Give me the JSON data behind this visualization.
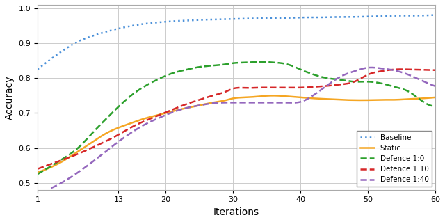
{
  "title": "",
  "xlabel": "Iterations",
  "ylabel": "Accuracy",
  "xlim": [
    1,
    60
  ],
  "ylim": [
    0.48,
    1.01
  ],
  "xticks": [
    1,
    13,
    20,
    30,
    40,
    50,
    60
  ],
  "yticks": [
    0.5,
    0.6,
    0.7,
    0.8,
    0.9,
    1.0
  ],
  "series": [
    {
      "label": "Baseline",
      "color": "#4a90d9",
      "linestyle": "dotted",
      "linewidth": 1.8,
      "x": [
        1,
        3,
        5,
        7,
        9,
        11,
        13,
        15,
        17,
        19,
        21,
        23,
        25,
        27,
        29,
        31,
        33,
        35,
        37,
        39,
        41,
        43,
        45,
        47,
        49,
        51,
        53,
        55,
        57,
        59,
        60
      ],
      "y": [
        0.825,
        0.855,
        0.882,
        0.905,
        0.92,
        0.932,
        0.942,
        0.95,
        0.956,
        0.96,
        0.963,
        0.965,
        0.967,
        0.968,
        0.969,
        0.97,
        0.971,
        0.972,
        0.972,
        0.973,
        0.974,
        0.974,
        0.975,
        0.975,
        0.976,
        0.977,
        0.978,
        0.979,
        0.979,
        0.98,
        0.981
      ]
    },
    {
      "label": "Static",
      "color": "#f5a623",
      "linestyle": "solid",
      "linewidth": 1.8,
      "x": [
        1,
        3,
        5,
        7,
        9,
        11,
        13,
        15,
        17,
        19,
        21,
        23,
        25,
        27,
        29,
        30,
        32,
        34,
        36,
        38,
        40,
        42,
        44,
        46,
        48,
        50,
        52,
        54,
        56,
        58,
        60
      ],
      "y": [
        0.53,
        0.545,
        0.565,
        0.59,
        0.615,
        0.64,
        0.658,
        0.672,
        0.685,
        0.695,
        0.705,
        0.714,
        0.722,
        0.73,
        0.737,
        0.742,
        0.745,
        0.748,
        0.75,
        0.748,
        0.745,
        0.742,
        0.74,
        0.738,
        0.737,
        0.737,
        0.738,
        0.738,
        0.74,
        0.742,
        0.745
      ]
    },
    {
      "label": "Defence 1:0",
      "color": "#2ca02c",
      "linestyle": "dashed",
      "linewidth": 1.8,
      "x": [
        1,
        3,
        5,
        7,
        9,
        11,
        13,
        15,
        17,
        19,
        21,
        23,
        25,
        27,
        29,
        30,
        32,
        34,
        36,
        38,
        40,
        42,
        44,
        46,
        48,
        50,
        52,
        54,
        56,
        58,
        60
      ],
      "y": [
        0.525,
        0.548,
        0.572,
        0.6,
        0.64,
        0.68,
        0.718,
        0.752,
        0.778,
        0.798,
        0.814,
        0.824,
        0.832,
        0.836,
        0.84,
        0.843,
        0.845,
        0.847,
        0.845,
        0.84,
        0.825,
        0.81,
        0.8,
        0.795,
        0.79,
        0.79,
        0.785,
        0.775,
        0.762,
        0.735,
        0.72
      ]
    },
    {
      "label": "Defence 1:10",
      "color": "#d62728",
      "linestyle": "dashed",
      "linewidth": 1.8,
      "x": [
        1,
        3,
        5,
        7,
        9,
        11,
        13,
        15,
        17,
        19,
        21,
        23,
        25,
        27,
        29,
        30,
        32,
        34,
        36,
        38,
        40,
        42,
        44,
        46,
        48,
        50,
        52,
        54,
        56,
        58,
        60
      ],
      "y": [
        0.54,
        0.554,
        0.568,
        0.583,
        0.6,
        0.618,
        0.638,
        0.66,
        0.678,
        0.694,
        0.71,
        0.725,
        0.738,
        0.75,
        0.762,
        0.77,
        0.772,
        0.773,
        0.773,
        0.773,
        0.773,
        0.775,
        0.778,
        0.782,
        0.79,
        0.81,
        0.82,
        0.825,
        0.825,
        0.824,
        0.823
      ]
    },
    {
      "label": "Defence 1:40",
      "color": "#9467bd",
      "linestyle": "dashed",
      "linewidth": 1.8,
      "x": [
        3,
        5,
        7,
        9,
        11,
        13,
        15,
        17,
        19,
        21,
        23,
        25,
        27,
        29,
        30,
        32,
        34,
        36,
        38,
        40,
        42,
        44,
        46,
        48,
        50,
        52,
        54,
        56,
        58,
        60
      ],
      "y": [
        0.485,
        0.505,
        0.53,
        0.558,
        0.588,
        0.618,
        0.645,
        0.668,
        0.686,
        0.702,
        0.714,
        0.722,
        0.728,
        0.73,
        0.73,
        0.73,
        0.73,
        0.73,
        0.73,
        0.732,
        0.752,
        0.78,
        0.805,
        0.82,
        0.83,
        0.828,
        0.822,
        0.81,
        0.793,
        0.777
      ]
    }
  ],
  "legend_loc": "lower right",
  "grid": true,
  "background_color": "#ffffff",
  "grid_color": "#cccccc"
}
